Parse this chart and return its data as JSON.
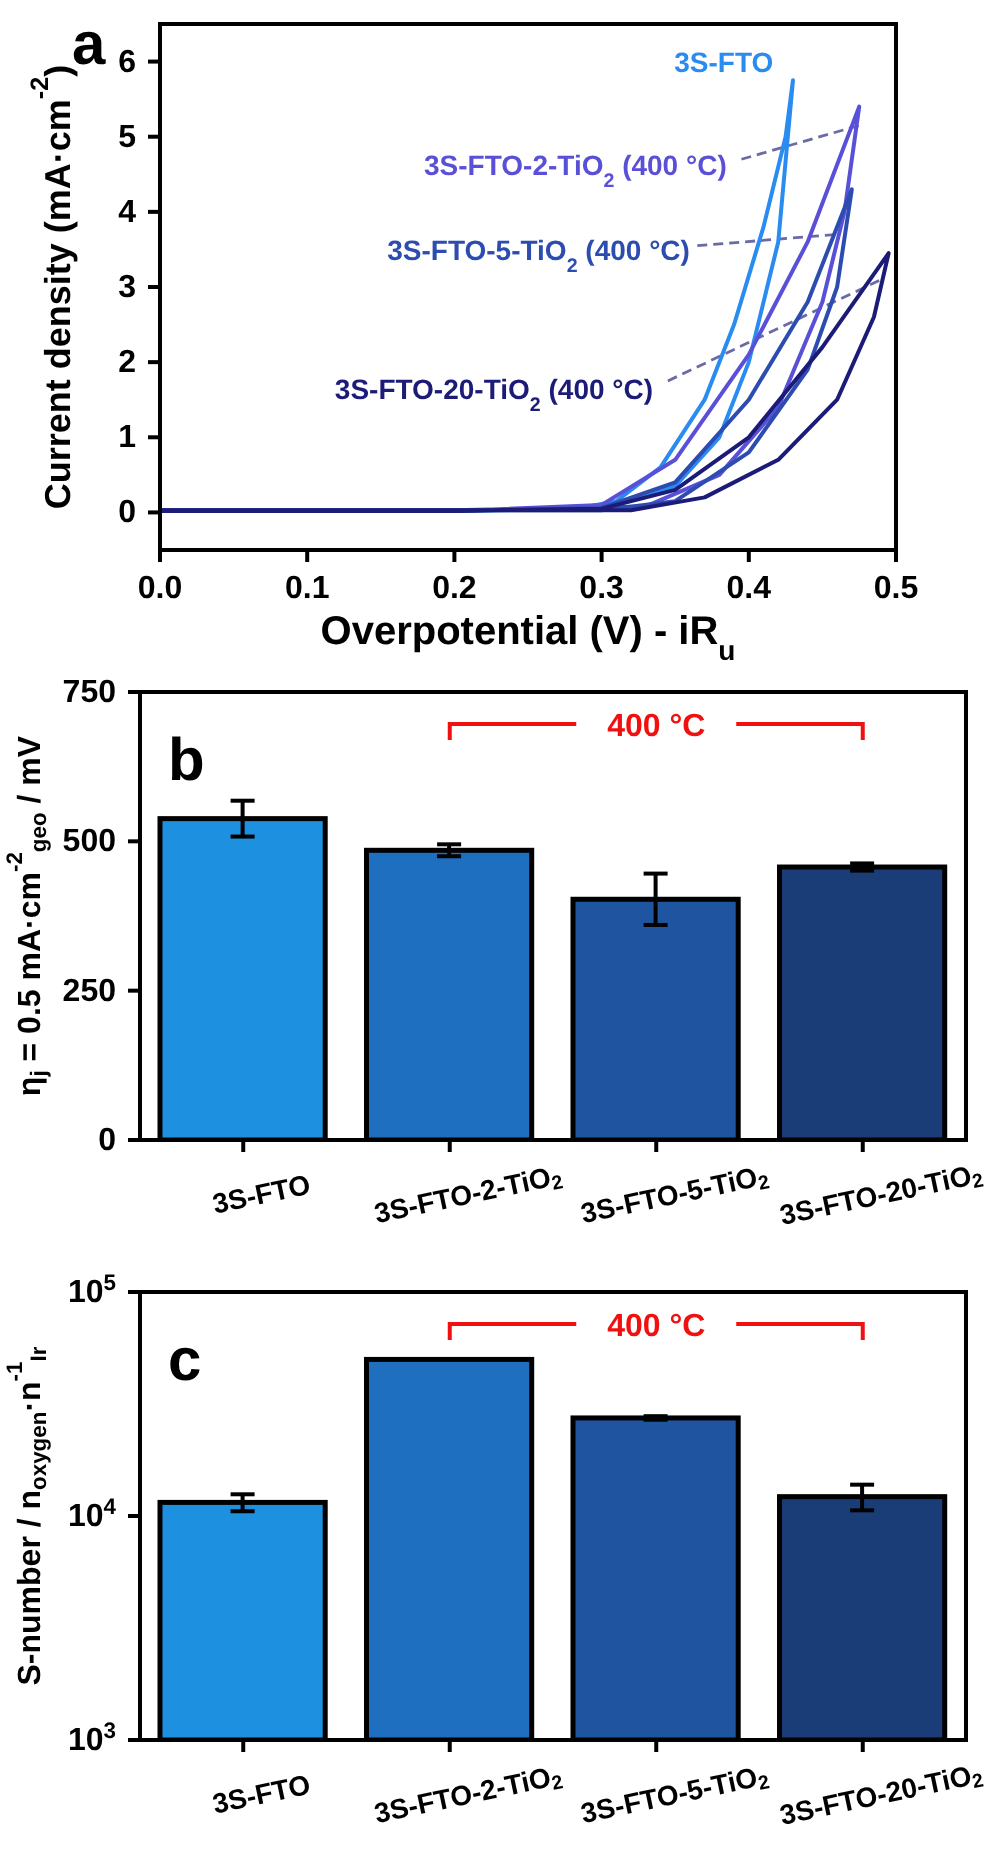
{
  "chart_data": [
    {
      "type": "line",
      "xlabel": "Overpotential (V) - iR$_{u}$",
      "ylabel": "Current density (mA·cm$^{-2}$)",
      "annotations": [
        "a"
      ],
      "marker": "none",
      "xlim": [
        0,
        0.5
      ],
      "xticks": [
        {
          "value": 0,
          "label": "0.0"
        },
        {
          "value": 0.1,
          "label": "0.1"
        },
        {
          "value": 0.2,
          "label": "0.2"
        },
        {
          "value": 0.3,
          "label": "0.3"
        },
        {
          "value": 0.4,
          "label": "0.4"
        },
        {
          "value": 0.5,
          "label": "0.5"
        }
      ],
      "ylim": [
        -0.5,
        6.5
      ],
      "yticks": [
        0,
        1,
        2,
        3,
        4,
        5,
        6
      ],
      "series": [
        {
          "name": "3S-FTO",
          "color": "#2a8cf0",
          "x": [
            0,
            0.2,
            0.3,
            0.35,
            0.38,
            0.4,
            0.42,
            0.43,
            0.425,
            0.41,
            0.39,
            0.37,
            0.34,
            0.31,
            0.28,
            0.2,
            0
          ],
          "values": [
            0.02,
            0.02,
            0.05,
            0.35,
            1.0,
            2.0,
            3.6,
            5.75,
            5.0,
            3.8,
            2.5,
            1.5,
            0.6,
            0.15,
            0.04,
            0.03,
            0.03
          ]
        },
        {
          "name": "3S-FTO-2-TiO$_{2}$ (400 °C)",
          "color": "#5a50d8",
          "x": [
            0,
            0.2,
            0.3,
            0.35,
            0.4,
            0.44,
            0.475,
            0.465,
            0.45,
            0.42,
            0.38,
            0.33,
            0.2,
            0
          ],
          "values": [
            0.02,
            0.02,
            0.1,
            0.7,
            2.1,
            3.6,
            5.4,
            4.0,
            2.8,
            1.4,
            0.5,
            0.08,
            0.03,
            0.03
          ]
        },
        {
          "name": "3S-FTO-5-TiO$_{2}$ (400 °C)",
          "color": "#2c4cb0",
          "x": [
            0,
            0.2,
            0.3,
            0.35,
            0.4,
            0.44,
            0.47,
            0.46,
            0.44,
            0.4,
            0.35,
            0.3,
            0.2,
            0
          ],
          "values": [
            0.02,
            0.02,
            0.06,
            0.4,
            1.5,
            2.8,
            4.3,
            3.0,
            1.9,
            0.8,
            0.15,
            0.03,
            0.03,
            0.03
          ]
        },
        {
          "name": "3S-FTO-20-TiO$_{2}$ (400 °C)",
          "color": "#1c1c78",
          "x": [
            0,
            0.2,
            0.3,
            0.35,
            0.4,
            0.45,
            0.495,
            0.485,
            0.46,
            0.42,
            0.37,
            0.32,
            0.2,
            0
          ],
          "values": [
            0.02,
            0.02,
            0.05,
            0.3,
            1.0,
            2.2,
            3.45,
            2.6,
            1.5,
            0.7,
            0.2,
            0.03,
            0.03,
            0.03
          ]
        }
      ]
    },
    {
      "type": "bar",
      "ylabel": "η$_{j}$ = 0.5 mA·cm$^{-2}$$_{geo}$ / mV",
      "annotations": [
        "b",
        "400 °C"
      ],
      "categories": [
        "3S-FTO",
        "3S-FTO-2-TiO$_{2}$",
        "3S-FTO-5-TiO$_{2}$",
        "3S-FTO-20-TiO$_{2}$"
      ],
      "values": [
        538,
        485,
        403,
        457
      ],
      "errors": [
        30,
        10,
        43,
        6
      ],
      "colors": [
        "#1e90e0",
        "#1f6fc0",
        "#1f55a0",
        "#1a3d78"
      ],
      "ylim": [
        0,
        750
      ],
      "yticks": [
        0,
        250,
        500,
        750
      ]
    },
    {
      "type": "bar",
      "ylabel": "S-number / n$_{oxygen}$·n$^{-1}$$_{Ir}$",
      "annotations": [
        "c",
        "400 °C"
      ],
      "categories": [
        "3S-FTO",
        "3S-FTO-2-TiO$_{2}$",
        "3S-FTO-5-TiO$_{2}$",
        "3S-FTO-20-TiO$_{2}$"
      ],
      "values": [
        11500,
        50000,
        27400,
        12200
      ],
      "errors": [
        1000,
        null,
        500,
        1600
      ],
      "colors": [
        "#1e90e0",
        "#1f6fc0",
        "#1f55a0",
        "#1a3d78"
      ],
      "log": true,
      "ylim": [
        1000,
        100000
      ],
      "yticks": [
        {
          "value": 1000,
          "label": "10$^{3}$"
        },
        {
          "value": 10000,
          "label": "10$^{4}$"
        },
        {
          "value": 100000,
          "label": "10$^{5}$"
        }
      ]
    }
  ]
}
